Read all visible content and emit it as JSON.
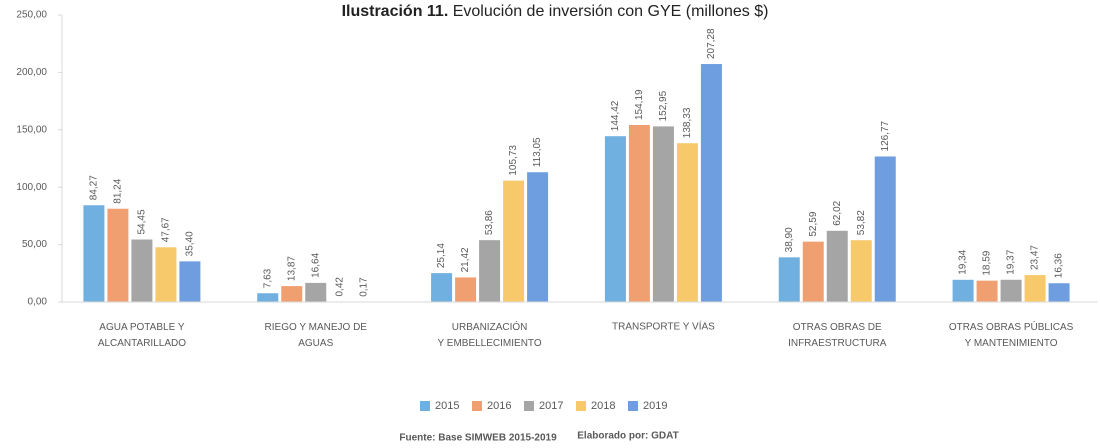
{
  "chart_data": {
    "type": "bar",
    "figure_label": "Ilustración 11.",
    "title": "Evolución de inversión con GYE (millones $)",
    "categories": [
      "AGUA POTABLE Y\nALCANTARILLADO",
      "RIEGO Y MANEJO DE\nAGUAS",
      "URBANIZACIÓN\nY EMBELLECIMIENTO",
      "TRANSPORTE Y VÍAS",
      "OTRAS OBRAS DE\nINFRAESTRUCTURA",
      "OTRAS OBRAS PÚBLICAS\nY MANTENIMIENTO"
    ],
    "series": [
      {
        "name": "2015",
        "color": "#6fb0e0",
        "values": [
          84.27,
          7.63,
          25.14,
          144.42,
          38.9,
          19.34
        ],
        "value_labels": [
          "84,27",
          "7,63",
          "25,14",
          "144,42",
          "38,90",
          "19,34"
        ]
      },
      {
        "name": "2016",
        "color": "#f0a070",
        "values": [
          81.24,
          13.87,
          21.42,
          154.19,
          52.59,
          18.59
        ],
        "value_labels": [
          "81,24",
          "13,87",
          "21,42",
          "154,19",
          "52,59",
          "18,59"
        ]
      },
      {
        "name": "2017",
        "color": "#a5a5a5",
        "values": [
          54.45,
          16.64,
          53.86,
          152.95,
          62.02,
          19.37
        ],
        "value_labels": [
          "54,45",
          "16,64",
          "53,86",
          "152,95",
          "62,02",
          "19,37"
        ]
      },
      {
        "name": "2018",
        "color": "#f7c96a",
        "values": [
          47.67,
          0.42,
          105.73,
          138.33,
          53.82,
          23.47
        ],
        "value_labels": [
          "47,67",
          "0,42",
          "105,73",
          "138,33",
          "53,82",
          "23,47"
        ]
      },
      {
        "name": "2019",
        "color": "#6f9ee0",
        "values": [
          35.4,
          0.17,
          113.05,
          207.28,
          126.77,
          16.36
        ],
        "value_labels": [
          "35,40",
          "0,17",
          "113,05",
          "207,28",
          "126,77",
          "16,36"
        ]
      }
    ],
    "ylim": [
      0,
      250
    ],
    "yticks": [
      {
        "value": 0,
        "label": "0,00"
      },
      {
        "value": 50,
        "label": "50,00"
      },
      {
        "value": 100,
        "label": "100,00"
      },
      {
        "value": 150,
        "label": "150,00"
      },
      {
        "value": 200,
        "label": "200,00"
      },
      {
        "value": 250,
        "label": "250,00"
      }
    ],
    "grid": false,
    "legend": "bottom",
    "source": "Fuente: Base SIMWEB 2015-2019",
    "credit": "Elaborado por: GDAT"
  }
}
